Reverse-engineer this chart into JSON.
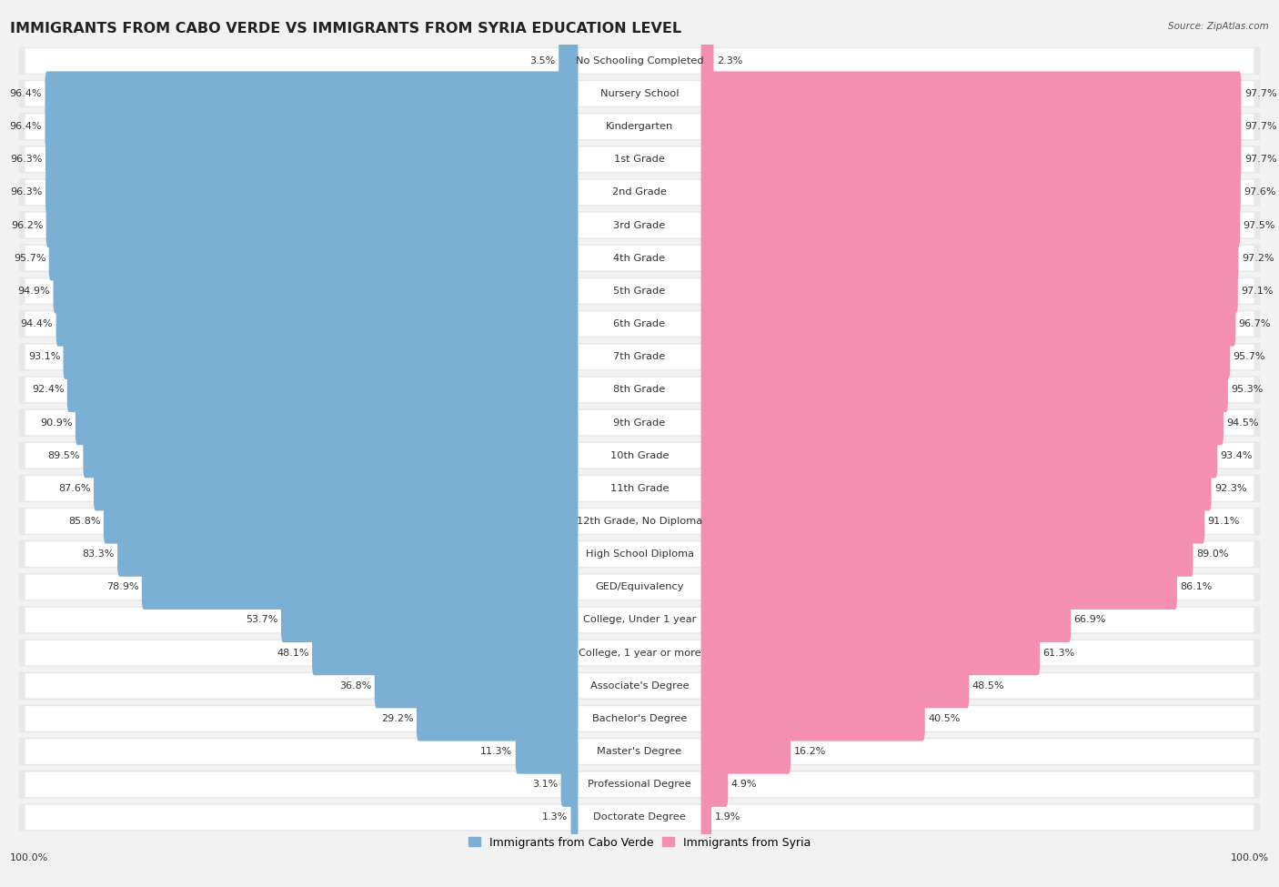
{
  "title": "IMMIGRANTS FROM CABO VERDE VS IMMIGRANTS FROM SYRIA EDUCATION LEVEL",
  "source": "Source: ZipAtlas.com",
  "categories": [
    "No Schooling Completed",
    "Nursery School",
    "Kindergarten",
    "1st Grade",
    "2nd Grade",
    "3rd Grade",
    "4th Grade",
    "5th Grade",
    "6th Grade",
    "7th Grade",
    "8th Grade",
    "9th Grade",
    "10th Grade",
    "11th Grade",
    "12th Grade, No Diploma",
    "High School Diploma",
    "GED/Equivalency",
    "College, Under 1 year",
    "College, 1 year or more",
    "Associate's Degree",
    "Bachelor's Degree",
    "Master's Degree",
    "Professional Degree",
    "Doctorate Degree"
  ],
  "cabo_verde": [
    3.5,
    96.4,
    96.4,
    96.3,
    96.3,
    96.2,
    95.7,
    94.9,
    94.4,
    93.1,
    92.4,
    90.9,
    89.5,
    87.6,
    85.8,
    83.3,
    78.9,
    53.7,
    48.1,
    36.8,
    29.2,
    11.3,
    3.1,
    1.3
  ],
  "syria": [
    2.3,
    97.7,
    97.7,
    97.7,
    97.6,
    97.5,
    97.2,
    97.1,
    96.7,
    95.7,
    95.3,
    94.5,
    93.4,
    92.3,
    91.1,
    89.0,
    86.1,
    66.9,
    61.3,
    48.5,
    40.5,
    16.2,
    4.9,
    1.9
  ],
  "cabo_verde_color": "#7bafd4",
  "syria_color": "#f48fb1",
  "background_color": "#f2f2f2",
  "row_bg_color": "#e8e8e8",
  "bar_bg_color": "#ffffff",
  "title_fontsize": 11.5,
  "label_fontsize": 8.2,
  "value_fontsize": 8.0,
  "legend_label_cabo": "Immigrants from Cabo Verde",
  "legend_label_syria": "Immigrants from Syria"
}
